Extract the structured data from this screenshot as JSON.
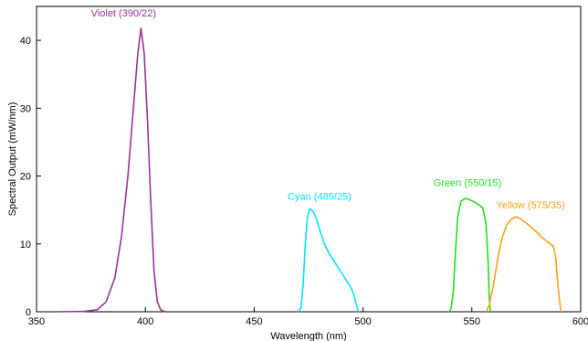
{
  "chart_data": {
    "type": "line",
    "title": "",
    "xlabel": "Wavelength (nm)",
    "ylabel": "Spectral Output (mW/nm)",
    "xlim": [
      350,
      600
    ],
    "ylim": [
      0,
      45
    ],
    "xticks": [
      350,
      400,
      450,
      500,
      550,
      600
    ],
    "yticks": [
      0,
      10,
      20,
      30,
      40
    ],
    "xtick_labels": [
      "350",
      "400",
      "450",
      "500",
      "550",
      "600"
    ],
    "ytick_labels": [
      "0",
      "10",
      "20",
      "30",
      "40"
    ],
    "grid": false,
    "legend": "none",
    "series": [
      {
        "name": "Violet (390/22)",
        "color": "#993399",
        "label_at": [
          390,
          43.5
        ],
        "points": [
          [
            360,
            0
          ],
          [
            372,
            0.05
          ],
          [
            378,
            0.3
          ],
          [
            382,
            1.5
          ],
          [
            386,
            5
          ],
          [
            389,
            11
          ],
          [
            392,
            20
          ],
          [
            394.5,
            30
          ],
          [
            396.5,
            38
          ],
          [
            398,
            41.8
          ],
          [
            399.5,
            38
          ],
          [
            401,
            28
          ],
          [
            402.5,
            16
          ],
          [
            404,
            6
          ],
          [
            405.5,
            1.5
          ],
          [
            407,
            0.3
          ],
          [
            409,
            0
          ]
        ]
      },
      {
        "name": "Cyan (485/25)",
        "color": "#00e5ff",
        "label_at": [
          480,
          16.5
        ],
        "points": [
          [
            470,
            0
          ],
          [
            471.5,
            0.5
          ],
          [
            472.5,
            4
          ],
          [
            473.5,
            10
          ],
          [
            474.5,
            14
          ],
          [
            475.5,
            15.2
          ],
          [
            477,
            14.8
          ],
          [
            478.5,
            13.8
          ],
          [
            480,
            12.2
          ],
          [
            482,
            10.2
          ],
          [
            484,
            8.8
          ],
          [
            486,
            7.8
          ],
          [
            488,
            6.8
          ],
          [
            490,
            5.8
          ],
          [
            492,
            4.8
          ],
          [
            494,
            3.8
          ],
          [
            495.5,
            2.8
          ],
          [
            496.5,
            1.5
          ],
          [
            497.5,
            0.4
          ],
          [
            498,
            0
          ]
        ]
      },
      {
        "name": "Green (550/15)",
        "color": "#22dd22",
        "label_at": [
          548,
          18.5
        ],
        "points": [
          [
            539.5,
            0
          ],
          [
            540.5,
            0.5
          ],
          [
            541.5,
            3
          ],
          [
            542.5,
            9
          ],
          [
            543.5,
            14
          ],
          [
            545,
            16.3
          ],
          [
            547,
            16.7
          ],
          [
            549,
            16.5
          ],
          [
            551,
            16.2
          ],
          [
            553,
            15.8
          ],
          [
            555,
            15.3
          ],
          [
            556.5,
            13
          ],
          [
            557.5,
            7
          ],
          [
            558,
            2
          ],
          [
            558.5,
            0
          ]
        ]
      },
      {
        "name": "Yellow (575/35)",
        "color": "#ff9f1a",
        "label_at": [
          577,
          15.2
        ],
        "points": [
          [
            556.5,
            0
          ],
          [
            558,
            1
          ],
          [
            560,
            4
          ],
          [
            562,
            8
          ],
          [
            564,
            11
          ],
          [
            566,
            12.8
          ],
          [
            568,
            13.6
          ],
          [
            570,
            14
          ],
          [
            572,
            13.8
          ],
          [
            574,
            13.3
          ],
          [
            576,
            12.8
          ],
          [
            578,
            12.2
          ],
          [
            580,
            11.7
          ],
          [
            582,
            11
          ],
          [
            584,
            10.5
          ],
          [
            586,
            10
          ],
          [
            587.5,
            9.6
          ],
          [
            588.5,
            8
          ],
          [
            589.5,
            4
          ],
          [
            590.5,
            1
          ],
          [
            591,
            0
          ]
        ]
      }
    ]
  }
}
